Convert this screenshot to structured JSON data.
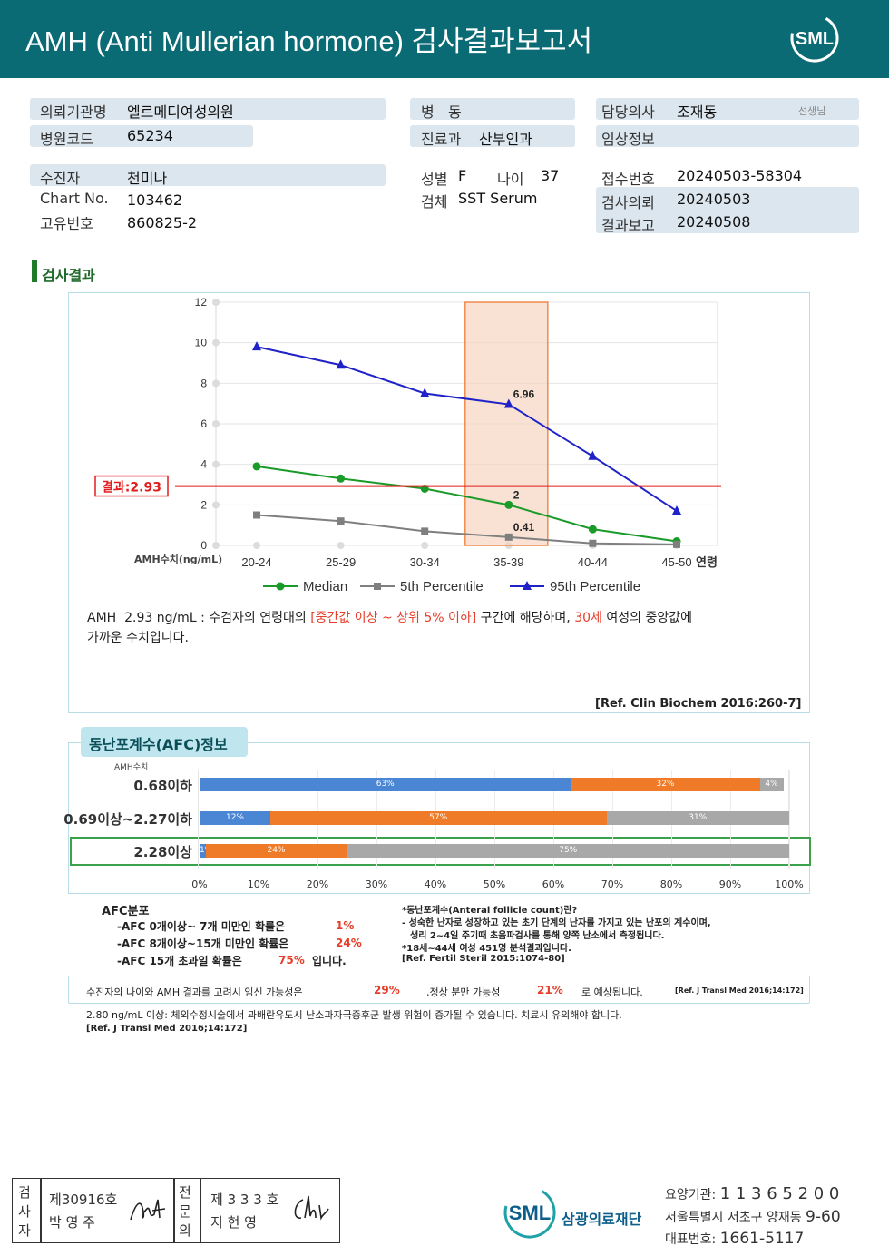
{
  "header": {
    "title": "AMH (Anti Mullerian hormone) 검사결과보고서",
    "logo": "SML"
  },
  "info": {
    "institution_label": "의뢰기관명",
    "institution": "엘르메디여성의원",
    "hospital_code_label": "병원코드",
    "hospital_code": "65234",
    "ward_label": "병   동",
    "ward": "",
    "dept_label": "진료과",
    "dept": "산부인과",
    "doctor_label": "담당의사",
    "doctor": "조재동",
    "doctor_suffix": "선생님",
    "clinical_label": "임상정보",
    "clinical": "",
    "patient_label": "수진자",
    "patient": "천미나",
    "chart_label": "Chart No.",
    "chart": "103462",
    "id_label": "고유번호",
    "id": "860825-2",
    "sex_label": "성별",
    "sex": "F",
    "age_label": "나이",
    "age": "37",
    "specimen_label": "검체",
    "specimen": "SST Serum",
    "receipt_label": "접수번호",
    "receipt": "20240503-58304",
    "request_label": "검사의뢰",
    "request": "20240503",
    "report_label": "결과보고",
    "report": "20240508"
  },
  "section_title": "검사결과",
  "chart_data": {
    "type": "line",
    "categories": [
      "20-24",
      "25-29",
      "30-34",
      "35-39",
      "40-44",
      "45-50"
    ],
    "xlabel": "연령",
    "ylabel": "AMH수치(ng/mL)",
    "ylim": [
      0,
      12
    ],
    "yticks": [
      "0",
      "2",
      "4",
      "6",
      "8",
      "10",
      "12"
    ],
    "series": [
      {
        "name": "Median",
        "color": "#1a9a28",
        "values": [
          3.9,
          3.3,
          2.8,
          2.0,
          0.8,
          0.2
        ]
      },
      {
        "name": "5th Percentile",
        "color": "#7f7f7f",
        "values": [
          1.5,
          1.2,
          0.7,
          0.41,
          0.1,
          0.05
        ]
      },
      {
        "name": "95th Percentile",
        "color": "#1f22c8",
        "values": [
          9.8,
          8.9,
          7.5,
          6.96,
          4.4,
          1.7
        ]
      }
    ],
    "highlight_category": "35-39",
    "result_value": 2.93,
    "result_label": "결과:2.93",
    "point_labels": [
      "6.96",
      "2",
      "0.41"
    ]
  },
  "interpretation": {
    "line1_a": "AMH  2.93 ng/mL : 수검자의 연령대의 ",
    "line1_b": "[중간값 이상 ~ 상위 5% 이하]",
    "line1_c": " 구간에 해당하며, ",
    "line1_d": "30세",
    "line1_e": " 여성의 중앙값에",
    "line2": "가까운 수치입니다.",
    "ref": "[Ref. Clin Biochem 2016:260-7]"
  },
  "afc": {
    "title": "동난포계수(AFC)정보",
    "amh_label": "AMH수치",
    "colors": [
      "#4a86d4",
      "#ef7a27",
      "#a8a8a8"
    ],
    "rows": [
      {
        "label": "0.68이하",
        "values": [
          63,
          32,
          4
        ],
        "texts": [
          "63%",
          "32%",
          "4%"
        ]
      },
      {
        "label": "0.69이상~2.27이하",
        "values": [
          12,
          57,
          31
        ],
        "texts": [
          "12%",
          "57%",
          "31%"
        ]
      },
      {
        "label": "2.28이상",
        "values": [
          1,
          24,
          75
        ],
        "texts": [
          "1%",
          "24%",
          "75%"
        ]
      }
    ],
    "axis": [
      "0%",
      "10%",
      "20%",
      "30%",
      "40%",
      "50%",
      "60%",
      "70%",
      "80%",
      "90%",
      "100%"
    ],
    "dist_title": "AFC분포",
    "dist1_a": "-AFC 0개이상~ 7개 미만인 확률은",
    "dist1_b": "1%",
    "dist2_a": "-AFC 8개이상~15개 미만인 확률은",
    "dist2_b": "24%",
    "dist3_a": "-AFC 15개 초과일 확률은",
    "dist3_b": "75%",
    "dist3_c": "입니다.",
    "note_title": "*동난포계수(Anteral follicle count)란?",
    "note1": "- 성숙한 난자로 성장하고 있는 초기 단계의 난자를 가지고 있는 난포의 계수이며,",
    "note2": "생리 2~4일 주기때 초음파검사를 통해 양쪽 난소에서 측정됩니다.",
    "note3": "*18세~44세 여성 451명 분석결과입니다.",
    "note_ref": "[Ref. Fertil Steril 2015:1074-80]"
  },
  "pregnancy": {
    "a": "수진자의 나이와 AMH 결과를 고려시 임신 가능성은",
    "b": "29%",
    "c": ",정상 분만 가능성",
    "d": "21%",
    "e": "로 예상됩니다.",
    "ref": "[Ref. J Transl Med 2016;14:172]"
  },
  "warning": {
    "text": "2.80 ng/mL 이상: 체외수정시술에서 과배란유도시 난소과자극증후군 발생 위험이 증가될 수 있습니다. 치료시 유의해야 합니다.",
    "ref": "[Ref. J Transl Med 2016;14:172]"
  },
  "footer": {
    "tester_label": "검사자",
    "tester_no": "제30916호",
    "tester_name": "박 영 주",
    "specialist_label": "전문의",
    "specialist_no": "제 3 3 3 호",
    "specialist_name": "지 현 영",
    "org_name": "삼광의료재단",
    "code_label": "요양기관:",
    "code": "1 1 3 6 5 2 0 0",
    "address_a": "서울특별시 서초구 양재동",
    "address_b": "9-60",
    "phone_label": "대표번호:",
    "phone": "1661-5117"
  }
}
